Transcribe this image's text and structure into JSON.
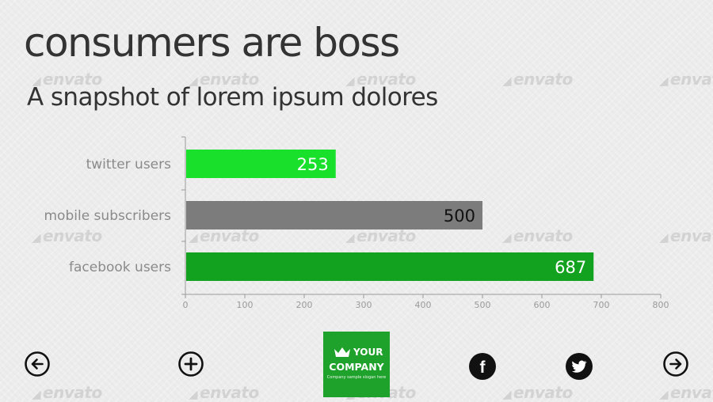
{
  "title": "consumers are boss",
  "subtitle": "A snapshot of lorem ipsum dolores",
  "watermark_text": "envato",
  "chart_data": {
    "type": "bar",
    "orientation": "horizontal",
    "categories": [
      "twitter users",
      "mobile subscribers",
      "facebook users"
    ],
    "values": [
      253,
      500,
      687
    ],
    "bar_colors": [
      "#19e02b",
      "#7c7c7c",
      "#13a21f"
    ],
    "value_label_colors": [
      "#ffffff",
      "#111111",
      "#ffffff"
    ],
    "xlim": [
      0,
      800
    ],
    "xticks": [
      0,
      100,
      200,
      300,
      400,
      500,
      600,
      700,
      800
    ],
    "grid": false,
    "legend": "none"
  },
  "nav": {
    "back_icon": "arrow-left-circle-icon",
    "add_icon": "plus-circle-icon",
    "next_icon": "arrow-right-circle-icon"
  },
  "social": {
    "facebook_icon": "facebook-icon",
    "facebook_glyph": "f",
    "twitter_icon": "twitter-bird-icon"
  },
  "logo": {
    "line1": "YOUR",
    "line2": "COMPANY",
    "slogan": "Company sample slogan here",
    "color": "#1fa22b"
  }
}
